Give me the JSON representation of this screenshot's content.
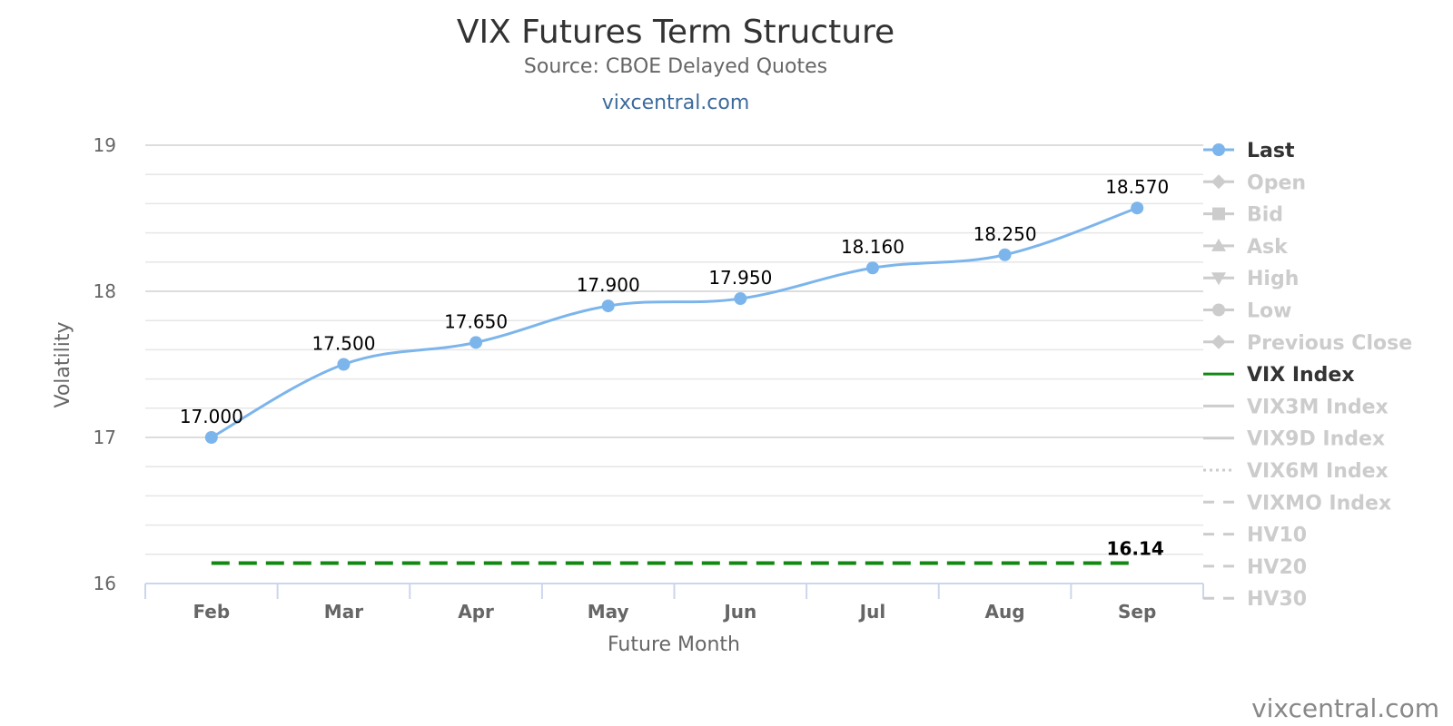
{
  "chart_data": {
    "type": "line",
    "title": "VIX Futures Term Structure",
    "subtitle": "Source: CBOE Delayed Quotes",
    "link_text": "vixcentral.com",
    "credit": "vixcentral.com",
    "xlabel": "Future Month",
    "ylabel": "Volatility",
    "categories": [
      "Feb",
      "Mar",
      "Apr",
      "May",
      "Jun",
      "Jul",
      "Aug",
      "Sep"
    ],
    "ylim": [
      16,
      19
    ],
    "yticks": [
      16,
      17,
      18,
      19
    ],
    "grid": true,
    "legend_position": "right",
    "series": [
      {
        "name": "Last",
        "color": "#7cb5ec",
        "style": "solid-smooth-markers",
        "values": [
          17.0,
          17.5,
          17.65,
          17.9,
          17.95,
          18.16,
          18.25,
          18.57
        ],
        "labels": [
          "17.000",
          "17.500",
          "17.650",
          "17.900",
          "17.950",
          "18.160",
          "18.250",
          "18.570"
        ]
      },
      {
        "name": "VIX Index",
        "color": "#118811",
        "style": "dashed",
        "values": [
          16.14,
          16.14,
          16.14,
          16.14,
          16.14,
          16.14,
          16.14,
          16.14
        ],
        "end_label": "16.14"
      }
    ],
    "legend": [
      {
        "label": "Last",
        "active": true,
        "symbol": "circle-line",
        "color": "#7cb5ec"
      },
      {
        "label": "Open",
        "active": false,
        "symbol": "diamond-line"
      },
      {
        "label": "Bid",
        "active": false,
        "symbol": "square-line"
      },
      {
        "label": "Ask",
        "active": false,
        "symbol": "triangle-line"
      },
      {
        "label": "High",
        "active": false,
        "symbol": "triangle-down-line"
      },
      {
        "label": "Low",
        "active": false,
        "symbol": "circle-line"
      },
      {
        "label": "Previous Close",
        "active": false,
        "symbol": "diamond-line"
      },
      {
        "label": "VIX Index",
        "active": true,
        "symbol": "line",
        "color": "#118811"
      },
      {
        "label": "VIX3M Index",
        "active": false,
        "symbol": "line"
      },
      {
        "label": "VIX9D Index",
        "active": false,
        "symbol": "line"
      },
      {
        "label": "VIX6M Index",
        "active": false,
        "symbol": "dotted-line"
      },
      {
        "label": "VIXMO Index",
        "active": false,
        "symbol": "dashed-line"
      },
      {
        "label": "HV10",
        "active": false,
        "symbol": "dashed-line"
      },
      {
        "label": "HV20",
        "active": false,
        "symbol": "dashed-line"
      },
      {
        "label": "HV30",
        "active": false,
        "symbol": "dashed-line"
      }
    ]
  },
  "colors": {
    "active_text": "#333333",
    "inactive": "#cccccc",
    "grid": "#e6e6e6",
    "axis": "#ccd6eb"
  }
}
